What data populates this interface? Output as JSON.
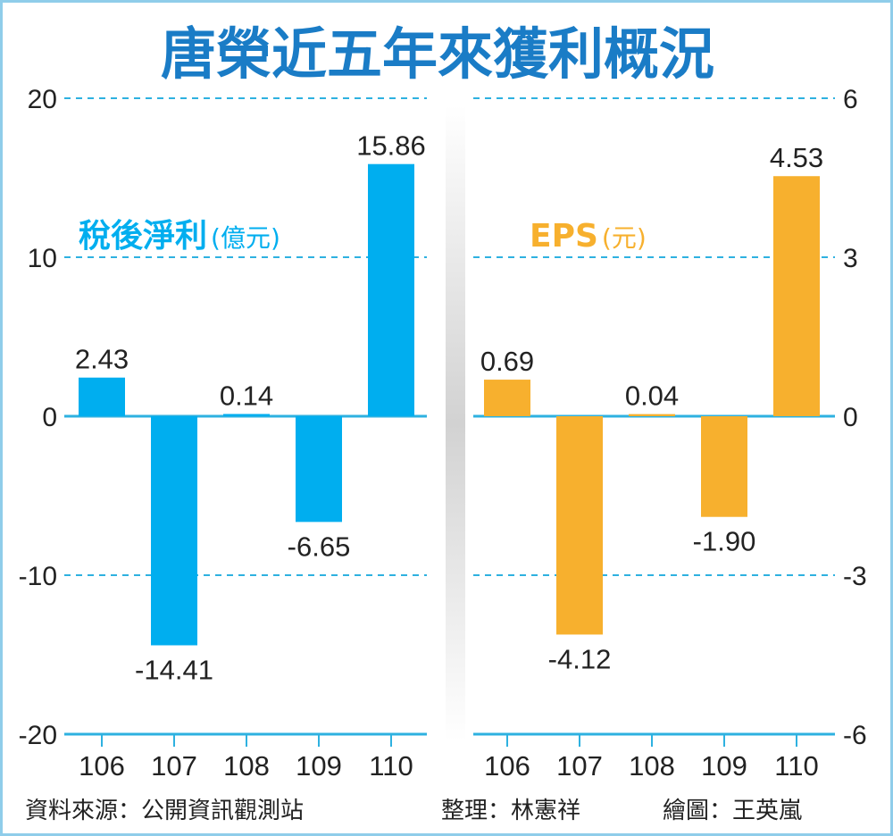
{
  "title": "唐榮近五年來獲利概況",
  "colors": {
    "title": "#1a7cc6",
    "net_income": "#00aeef",
    "eps": "#f7b02e",
    "grid": "#2eb1e0",
    "frame": "#8fcdea"
  },
  "chart_data": [
    {
      "type": "bar",
      "title": "稅後淨利(億元)",
      "series_label_main": "稅後淨利",
      "series_label_unit": "(億元)",
      "categories": [
        "106",
        "107",
        "108",
        "109",
        "110"
      ],
      "values": [
        2.43,
        -14.41,
        0.14,
        -6.65,
        15.86
      ],
      "value_labels": [
        "2.43",
        "-14.41",
        "0.14",
        "-6.65",
        "15.86"
      ],
      "ylim": [
        -20,
        20
      ],
      "yticks": [
        "20",
        "10",
        "0",
        "-10",
        "-20"
      ],
      "ytick_values": [
        20,
        10,
        0,
        -10,
        -20
      ],
      "grid": true
    },
    {
      "type": "bar",
      "title": "EPS(元)",
      "series_label_main": "EPS",
      "series_label_unit": "(元)",
      "categories": [
        "106",
        "107",
        "108",
        "109",
        "110"
      ],
      "values": [
        0.69,
        -4.12,
        0.04,
        -1.9,
        4.53
      ],
      "value_labels": [
        "0.69",
        "-4.12",
        "0.04",
        "-1.90",
        "4.53"
      ],
      "ylim": [
        -6,
        6
      ],
      "yticks": [
        "6",
        "3",
        "0",
        "-3",
        "-6"
      ],
      "ytick_values": [
        6,
        3,
        0,
        -3,
        -6
      ],
      "grid": true
    }
  ],
  "footer": {
    "source": "資料來源：公開資訊觀測站",
    "editor": "整理：林憲祥",
    "illustrator": "繪圖：王英嵐"
  }
}
